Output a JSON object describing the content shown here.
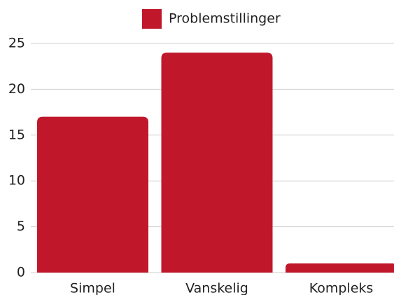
{
  "chart_data": {
    "type": "bar",
    "series": [
      {
        "name": "Problemstillinger",
        "color": "#c0172b",
        "values": [
          17,
          24,
          1
        ]
      }
    ],
    "categories": [
      "Simpel",
      "Vanskelig",
      "Kompleks"
    ],
    "ylim": [
      0,
      25
    ],
    "yticks": [
      0,
      5,
      10,
      15,
      20,
      25
    ],
    "grid": true,
    "legend": "top"
  }
}
